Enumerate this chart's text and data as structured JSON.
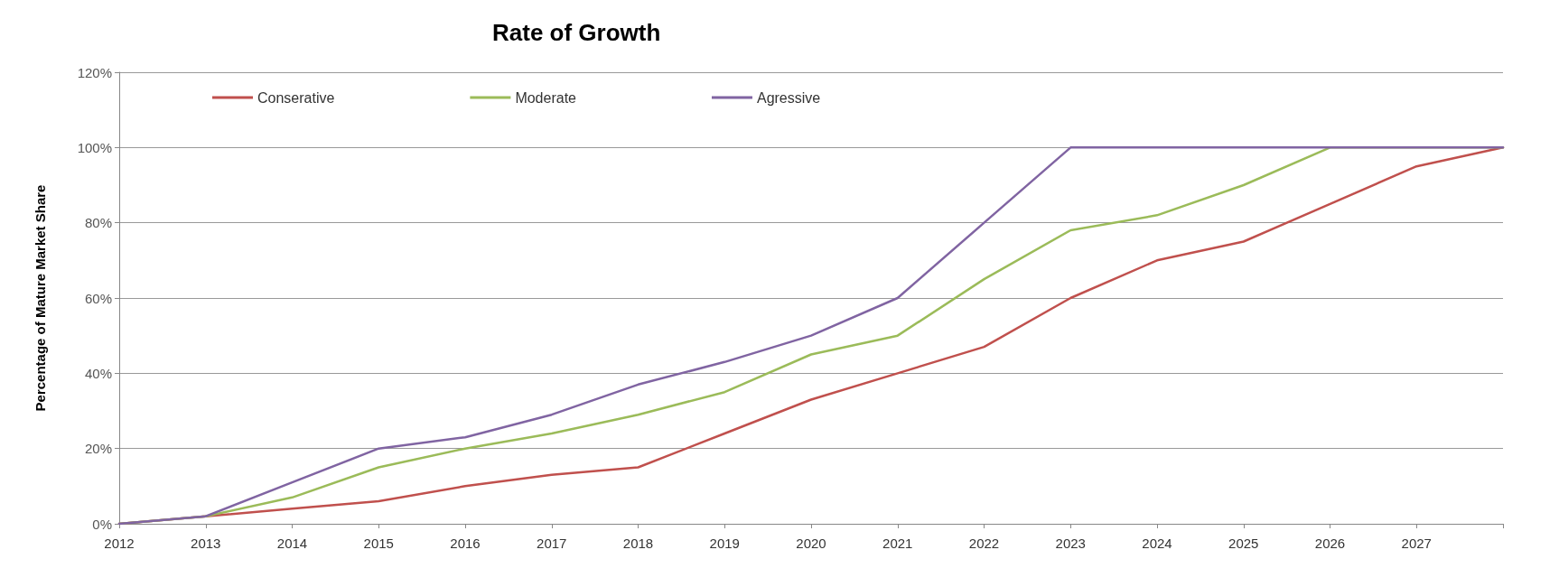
{
  "chart_data": {
    "type": "line",
    "title": "Rate of Growth",
    "ylabel": "Percentage of Mature Market Share",
    "categories": [
      "2012",
      "2013",
      "2014",
      "2015",
      "2016",
      "2017",
      "2018",
      "2019",
      "2020",
      "2021",
      "2022",
      "2023",
      "2024",
      "2025",
      "2026",
      "2027",
      null
    ],
    "series": [
      {
        "name": "Conserative",
        "color": "#c0504d",
        "values": [
          0,
          2,
          4,
          6,
          10,
          13,
          15,
          24,
          33,
          40,
          47,
          60,
          70,
          75,
          85,
          95,
          100
        ]
      },
      {
        "name": "Moderate",
        "color": "#9bbb59",
        "values": [
          0,
          2,
          7,
          15,
          20,
          24,
          29,
          35,
          45,
          50,
          65,
          78,
          82,
          90,
          100,
          100,
          100
        ]
      },
      {
        "name": "Agressive",
        "color": "#8064a2",
        "values": [
          0,
          2,
          11,
          20,
          23,
          29,
          37,
          43,
          50,
          60,
          80,
          100,
          100,
          100,
          100,
          100,
          100
        ]
      }
    ],
    "ylim": [
      0,
      120
    ],
    "yticks": [
      {
        "value": 0,
        "label": "0%"
      },
      {
        "value": 20,
        "label": "20%"
      },
      {
        "value": 40,
        "label": "40%"
      },
      {
        "value": 60,
        "label": "60%"
      },
      {
        "value": 80,
        "label": "80%"
      },
      {
        "value": 100,
        "label": "100%"
      },
      {
        "value": 120,
        "label": "120%"
      }
    ],
    "grid": "y",
    "legend": "top left",
    "marker": "none",
    "line_style": "solid"
  }
}
